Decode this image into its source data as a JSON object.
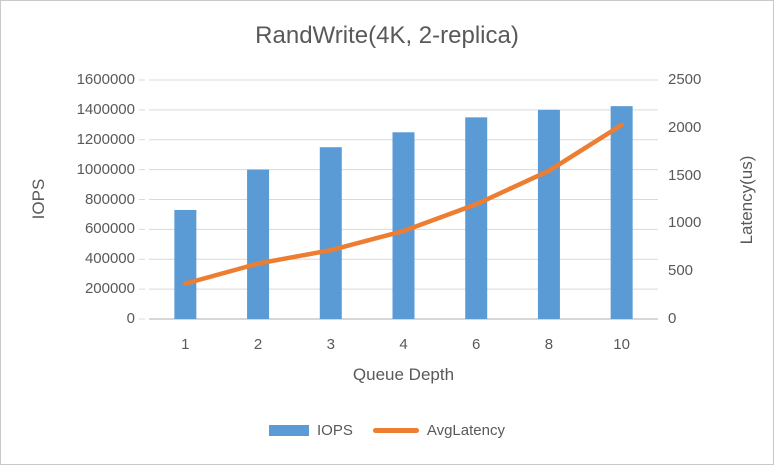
{
  "frame": {
    "background": "#ffffff",
    "border_color": "#c9c9c9"
  },
  "chart_data": {
    "type": "combo-bar-line",
    "title": "RandWrite(4K, 2-replica)",
    "categories": [
      "1",
      "2",
      "3",
      "4",
      "6",
      "8",
      "10"
    ],
    "xlabel": "Queue Depth",
    "ylabel_left": "IOPS",
    "ylabel_right": "Latency(us)",
    "grid": "horizontal-only",
    "legend_position": "bottom",
    "y_left": {
      "min": 0,
      "max": 1600000,
      "step": 200000,
      "ticks": [
        "0",
        "200000",
        "400000",
        "600000",
        "800000",
        "1000000",
        "1200000",
        "1400000",
        "1600000"
      ]
    },
    "y_right": {
      "min": 0,
      "max": 2500,
      "step": 500,
      "ticks": [
        "0",
        "500",
        "1000",
        "1500",
        "2000",
        "2500"
      ]
    },
    "series": [
      {
        "name": "IOPS",
        "type": "bar",
        "axis": "left",
        "color": "#5B9BD5",
        "values": [
          730000,
          1000000,
          1150000,
          1250000,
          1350000,
          1400000,
          1425000
        ]
      },
      {
        "name": "AvgLatency",
        "type": "line",
        "axis": "right",
        "color": "#ED7D31",
        "values": [
          370,
          580,
          720,
          920,
          1200,
          1550,
          2030
        ]
      }
    ],
    "gridline_color": "#d9d9d9",
    "axis_line_color": "#bfbfbf",
    "text_color": "#595959"
  },
  "legend": {
    "items": [
      {
        "label": "IOPS",
        "swatch": "bar",
        "color": "#5B9BD5"
      },
      {
        "label": "AvgLatency",
        "swatch": "line",
        "color": "#ED7D31"
      }
    ]
  }
}
